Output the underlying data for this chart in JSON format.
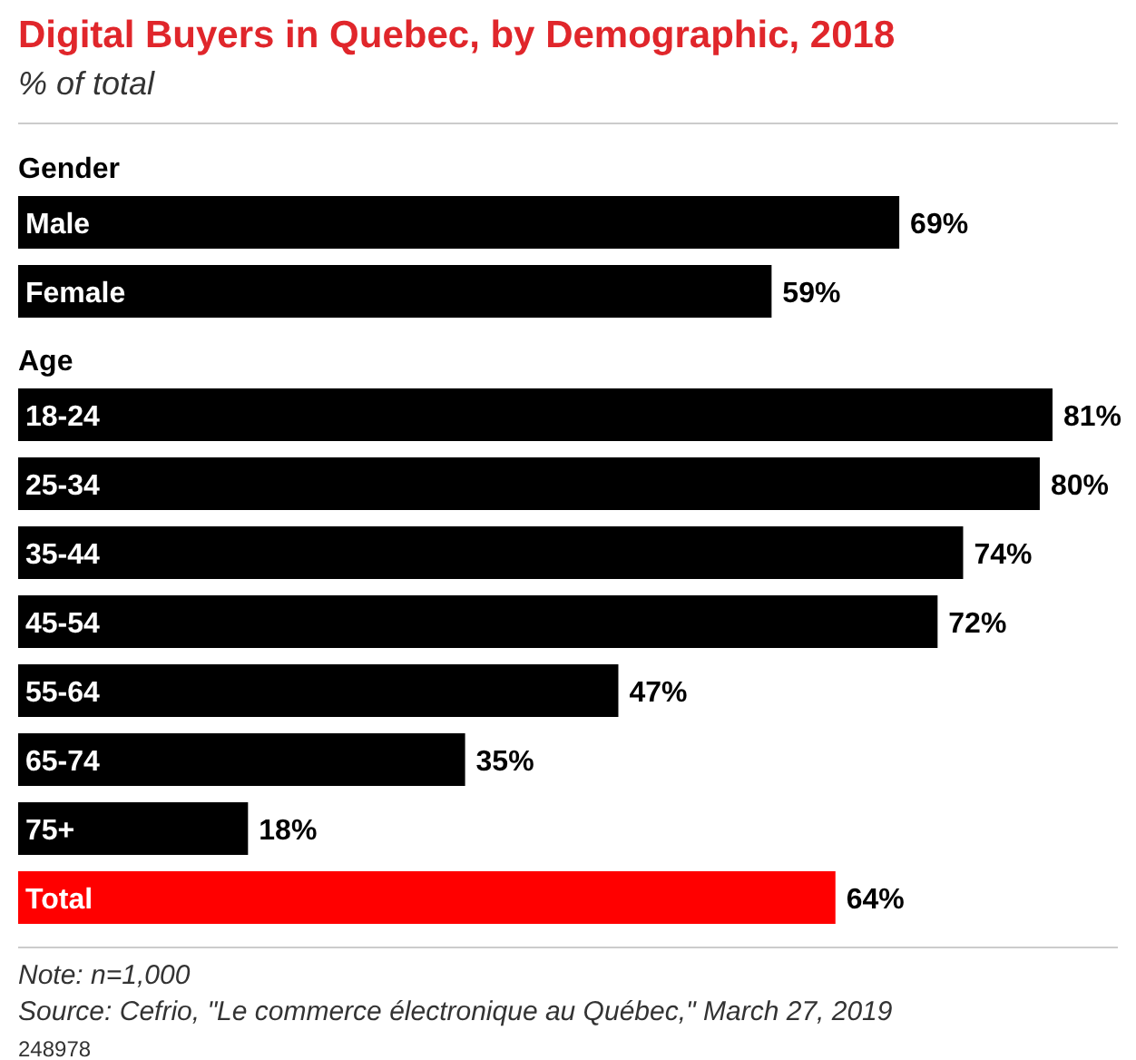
{
  "chart_data": {
    "type": "bar",
    "orientation": "horizontal",
    "title": "Digital Buyers in Quebec, by Demographic, 2018",
    "subtitle": "% of total",
    "categories": [
      "Gender",
      "Male",
      "Female",
      "Age",
      "18-24",
      "25-34",
      "35-44",
      "45-54",
      "55-64",
      "65-74",
      "75+",
      "Total"
    ],
    "values": [
      null,
      69,
      59,
      null,
      81,
      80,
      74,
      72,
      47,
      35,
      18,
      64
    ],
    "value_labels": [
      null,
      "69%",
      "59%",
      null,
      "81%",
      "80%",
      "74%",
      "72%",
      "47%",
      "35%",
      "18%",
      "64%"
    ],
    "colors": [
      null,
      "#000000",
      "#000000",
      null,
      "#000000",
      "#000000",
      "#000000",
      "#000000",
      "#000000",
      "#000000",
      "#000000",
      "#ff0000"
    ],
    "annotations": [
      "Note: n=1,000",
      "Source: Cefrio, \"Le commerce électronique au Québec,\" March 27, 2019",
      "248978"
    ]
  }
}
